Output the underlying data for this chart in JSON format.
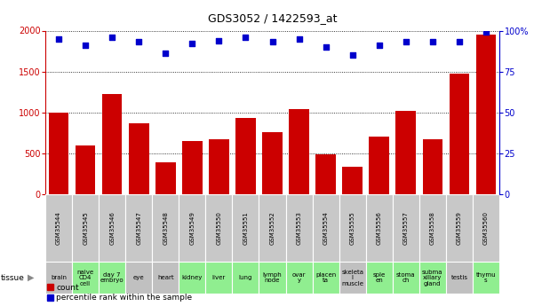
{
  "title": "GDS3052 / 1422593_at",
  "samples": [
    "GSM35544",
    "GSM35545",
    "GSM35546",
    "GSM35547",
    "GSM35548",
    "GSM35549",
    "GSM35550",
    "GSM35551",
    "GSM35552",
    "GSM35553",
    "GSM35554",
    "GSM35555",
    "GSM35556",
    "GSM35557",
    "GSM35558",
    "GSM35559",
    "GSM35560"
  ],
  "counts": [
    1000,
    600,
    1230,
    870,
    390,
    650,
    670,
    930,
    760,
    1040,
    490,
    340,
    710,
    1020,
    670,
    1470,
    1950
  ],
  "percentiles": [
    95,
    91,
    96,
    93,
    86,
    92,
    94,
    96,
    93,
    95,
    90,
    85,
    91,
    93,
    93,
    93,
    99
  ],
  "tissues": [
    "brain",
    "naive\nCD4\ncell",
    "day 7\nembryо",
    "eye",
    "heart",
    "kidney",
    "liver",
    "lung",
    "lymph\nnode",
    "ovar\ny",
    "placen\nta",
    "skeleta\nl\nmuscle",
    "sple\nen",
    "stoma\nch",
    "subma\nxillary\ngland",
    "testis",
    "thymu\ns"
  ],
  "tissue_colors": [
    "#c0c0c0",
    "#90ee90",
    "#90ee90",
    "#c0c0c0",
    "#c0c0c0",
    "#90ee90",
    "#90ee90",
    "#90ee90",
    "#90ee90",
    "#90ee90",
    "#90ee90",
    "#c0c0c0",
    "#90ee90",
    "#90ee90",
    "#90ee90",
    "#c0c0c0",
    "#90ee90"
  ],
  "bar_color": "#cc0000",
  "dot_color": "#0000cc",
  "ylim_left": [
    0,
    2000
  ],
  "ylim_right": [
    0,
    100
  ],
  "yticks_left": [
    0,
    500,
    1000,
    1500,
    2000
  ],
  "yticks_right": [
    0,
    25,
    50,
    75,
    100
  ],
  "bg_color": "#ffffff",
  "gsm_bg_color": "#c8c8c8",
  "title_fontsize": 9,
  "tick_fontsize": 7,
  "label_fontsize": 6,
  "tissue_fontsize": 5
}
